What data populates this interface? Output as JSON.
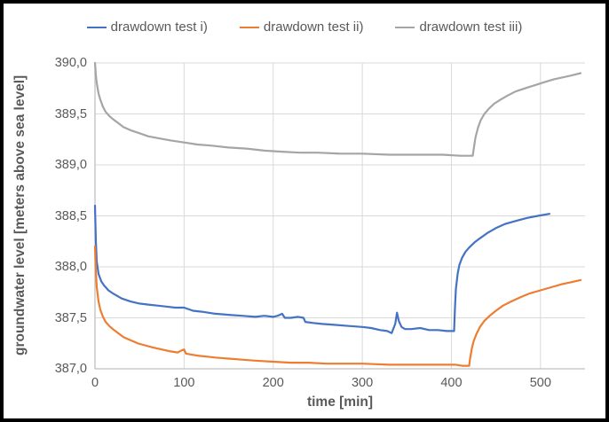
{
  "frame": {
    "background": "#ffffff",
    "border_color": "#000000"
  },
  "legend": {
    "position": "top",
    "items": [
      {
        "label": "drawdown test i)",
        "color": "#4472C4"
      },
      {
        "label": "drawdown test ii)",
        "color": "#ED7D31"
      },
      {
        "label": "drawdown test iii)",
        "color": "#A5A5A5"
      }
    ]
  },
  "chart_data": {
    "type": "line",
    "title": "",
    "xlabel": "time [min]",
    "ylabel": "groundwater level [meters above sea level]",
    "xlim": [
      0,
      550
    ],
    "ylim": [
      387.0,
      390.0
    ],
    "grid": true,
    "gridline_color": "#D9D9D9",
    "axis_line_color": "#BFBFBF",
    "text_color": "#595959",
    "legend_position": "top",
    "x_ticks": {
      "values": [
        0,
        100,
        200,
        300,
        400,
        500
      ],
      "labels": [
        "0",
        "100",
        "200",
        "300",
        "400",
        "500"
      ]
    },
    "y_ticks": {
      "values": [
        390.0,
        389.5,
        389.0,
        388.5,
        388.0,
        387.5,
        387.0
      ],
      "labels": [
        "390,0",
        "389,5",
        "389,0",
        "388,5",
        "388,0",
        "387,5",
        "387,0"
      ]
    },
    "series": [
      {
        "name": "drawdown test i)",
        "color": "#4472C4",
        "points": [
          [
            0,
            388.6
          ],
          [
            1,
            388.25
          ],
          [
            2,
            388.05
          ],
          [
            4,
            387.93
          ],
          [
            7,
            387.86
          ],
          [
            10,
            387.82
          ],
          [
            15,
            387.77
          ],
          [
            20,
            387.74
          ],
          [
            30,
            387.69
          ],
          [
            40,
            387.66
          ],
          [
            50,
            387.64
          ],
          [
            60,
            387.63
          ],
          [
            70,
            387.62
          ],
          [
            80,
            387.61
          ],
          [
            90,
            387.6
          ],
          [
            100,
            387.6
          ],
          [
            110,
            387.57
          ],
          [
            120,
            387.56
          ],
          [
            135,
            387.54
          ],
          [
            150,
            387.53
          ],
          [
            165,
            387.52
          ],
          [
            180,
            387.51
          ],
          [
            190,
            387.52
          ],
          [
            200,
            387.51
          ],
          [
            205,
            387.52
          ],
          [
            210,
            387.54
          ],
          [
            213,
            387.5
          ],
          [
            220,
            387.5
          ],
          [
            228,
            387.51
          ],
          [
            234,
            387.5
          ],
          [
            236,
            387.46
          ],
          [
            245,
            387.45
          ],
          [
            255,
            387.44
          ],
          [
            270,
            387.43
          ],
          [
            285,
            387.42
          ],
          [
            300,
            387.41
          ],
          [
            310,
            387.4
          ],
          [
            320,
            387.38
          ],
          [
            328,
            387.37
          ],
          [
            333,
            387.35
          ],
          [
            337,
            387.44
          ],
          [
            339,
            387.55
          ],
          [
            341,
            387.47
          ],
          [
            344,
            387.41
          ],
          [
            348,
            387.39
          ],
          [
            355,
            387.39
          ],
          [
            365,
            387.4
          ],
          [
            375,
            387.38
          ],
          [
            385,
            387.38
          ],
          [
            395,
            387.37
          ],
          [
            403,
            387.37
          ],
          [
            404,
            387.6
          ],
          [
            405,
            387.78
          ],
          [
            407,
            387.93
          ],
          [
            409,
            388.02
          ],
          [
            412,
            388.09
          ],
          [
            416,
            388.15
          ],
          [
            420,
            388.19
          ],
          [
            426,
            388.24
          ],
          [
            432,
            388.28
          ],
          [
            440,
            388.33
          ],
          [
            450,
            388.38
          ],
          [
            460,
            388.42
          ],
          [
            472,
            388.45
          ],
          [
            485,
            388.48
          ],
          [
            497,
            388.5
          ],
          [
            510,
            388.52
          ]
        ]
      },
      {
        "name": "drawdown test ii)",
        "color": "#ED7D31",
        "points": [
          [
            0,
            388.2
          ],
          [
            1,
            387.95
          ],
          [
            2,
            387.8
          ],
          [
            4,
            387.66
          ],
          [
            6,
            387.58
          ],
          [
            9,
            387.51
          ],
          [
            12,
            387.46
          ],
          [
            16,
            387.42
          ],
          [
            20,
            387.39
          ],
          [
            26,
            387.35
          ],
          [
            32,
            387.31
          ],
          [
            40,
            387.28
          ],
          [
            48,
            387.25
          ],
          [
            56,
            387.23
          ],
          [
            65,
            387.21
          ],
          [
            75,
            387.19
          ],
          [
            85,
            387.17
          ],
          [
            93,
            387.16
          ],
          [
            97,
            387.18
          ],
          [
            100,
            387.19
          ],
          [
            102,
            387.15
          ],
          [
            108,
            387.14
          ],
          [
            115,
            387.13
          ],
          [
            125,
            387.12
          ],
          [
            135,
            387.11
          ],
          [
            150,
            387.1
          ],
          [
            165,
            387.09
          ],
          [
            180,
            387.08
          ],
          [
            200,
            387.07
          ],
          [
            220,
            387.06
          ],
          [
            240,
            387.06
          ],
          [
            260,
            387.05
          ],
          [
            280,
            387.05
          ],
          [
            300,
            387.05
          ],
          [
            330,
            387.04
          ],
          [
            360,
            387.04
          ],
          [
            390,
            387.04
          ],
          [
            405,
            387.04
          ],
          [
            412,
            387.03
          ],
          [
            420,
            387.03
          ],
          [
            421,
            387.1
          ],
          [
            423,
            387.2
          ],
          [
            425,
            387.27
          ],
          [
            428,
            387.34
          ],
          [
            432,
            387.41
          ],
          [
            437,
            387.47
          ],
          [
            443,
            387.52
          ],
          [
            450,
            387.57
          ],
          [
            458,
            387.62
          ],
          [
            467,
            387.66
          ],
          [
            477,
            387.7
          ],
          [
            488,
            387.74
          ],
          [
            500,
            387.77
          ],
          [
            512,
            387.8
          ],
          [
            524,
            387.83
          ],
          [
            535,
            387.85
          ],
          [
            545,
            387.87
          ]
        ]
      },
      {
        "name": "drawdown test iii)",
        "color": "#A5A5A5",
        "points": [
          [
            0,
            390.0
          ],
          [
            1,
            389.88
          ],
          [
            2,
            389.8
          ],
          [
            4,
            389.7
          ],
          [
            6,
            389.64
          ],
          [
            9,
            389.57
          ],
          [
            12,
            389.52
          ],
          [
            16,
            389.48
          ],
          [
            20,
            389.45
          ],
          [
            26,
            389.41
          ],
          [
            32,
            389.37
          ],
          [
            40,
            389.34
          ],
          [
            50,
            389.31
          ],
          [
            60,
            389.28
          ],
          [
            72,
            389.26
          ],
          [
            85,
            389.24
          ],
          [
            100,
            389.22
          ],
          [
            115,
            389.2
          ],
          [
            130,
            389.19
          ],
          [
            150,
            389.17
          ],
          [
            170,
            389.16
          ],
          [
            190,
            389.14
          ],
          [
            210,
            389.13
          ],
          [
            230,
            389.12
          ],
          [
            250,
            389.12
          ],
          [
            275,
            389.11
          ],
          [
            300,
            389.11
          ],
          [
            330,
            389.1
          ],
          [
            360,
            389.1
          ],
          [
            390,
            389.1
          ],
          [
            410,
            389.09
          ],
          [
            420,
            389.09
          ],
          [
            424,
            389.09
          ],
          [
            425,
            389.15
          ],
          [
            427,
            389.27
          ],
          [
            430,
            389.37
          ],
          [
            433,
            389.44
          ],
          [
            437,
            389.5
          ],
          [
            442,
            389.55
          ],
          [
            448,
            389.6
          ],
          [
            455,
            389.64
          ],
          [
            463,
            389.68
          ],
          [
            472,
            389.72
          ],
          [
            482,
            389.75
          ],
          [
            493,
            389.78
          ],
          [
            504,
            389.81
          ],
          [
            515,
            389.84
          ],
          [
            526,
            389.86
          ],
          [
            536,
            389.88
          ],
          [
            545,
            389.9
          ]
        ]
      }
    ]
  }
}
